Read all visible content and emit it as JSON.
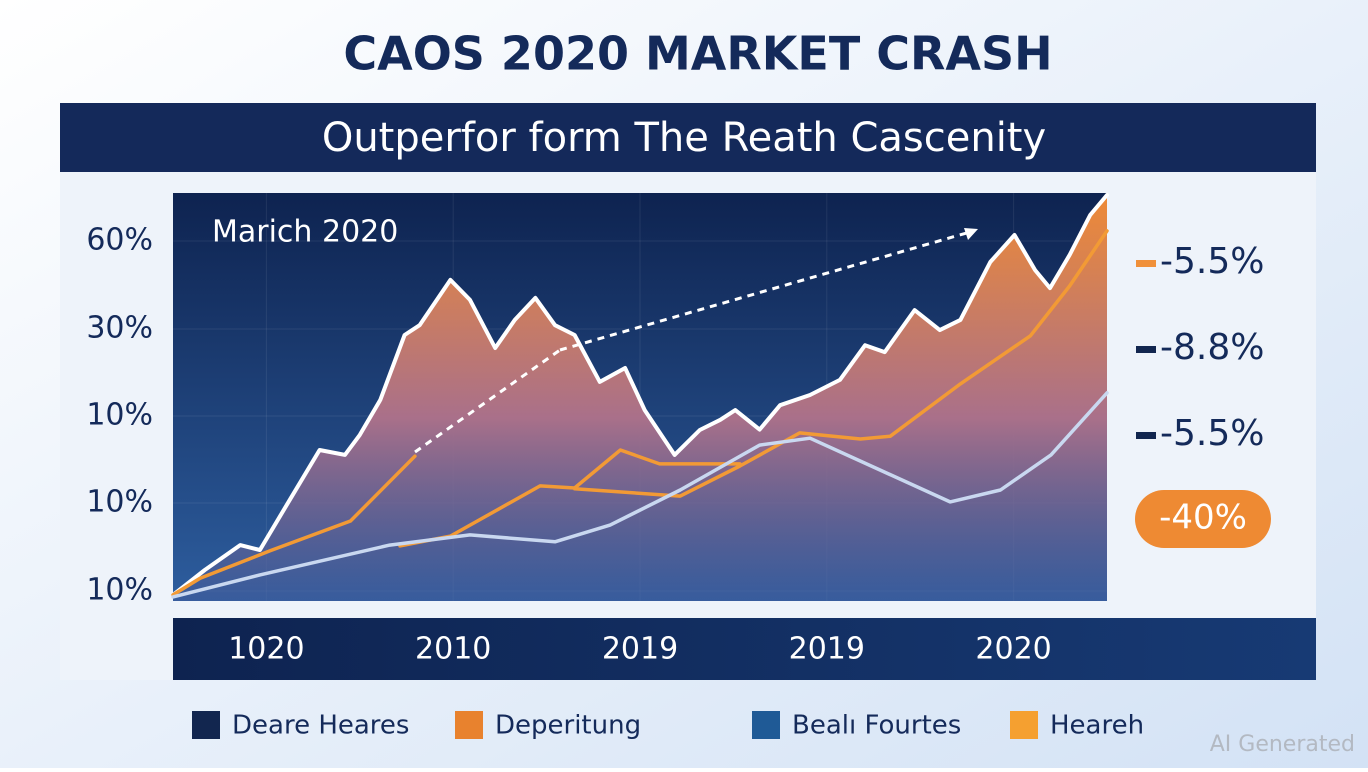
{
  "chart_data": {
    "type": "area",
    "title": "CAOS 2020 MARKET CRASH",
    "subtitle": "Outperfor form The Reath Cascenity",
    "annotation": "Marich 2020",
    "categories": [
      "1020",
      "2010",
      "2019",
      "2019",
      "2020"
    ],
    "y_labels": [
      "60%",
      "30%",
      "10%",
      "10%",
      "10%"
    ],
    "xlim": [
      0,
      100
    ],
    "ylim": [
      0,
      100
    ],
    "grid": true,
    "series": [
      {
        "color": "#ffffff",
        "x": [
          0,
          3.4,
          7.2,
          9.3,
          12.5,
          15.7,
          18.4,
          20.0,
          22.2,
          24.8,
          26.4,
          29.7,
          31.8,
          34.5,
          36.6,
          38.8,
          40.9,
          43.0,
          45.7,
          48.4,
          50.5,
          53.7,
          56.4,
          58.6,
          60.2,
          62.8,
          65.0,
          68.2,
          71.4,
          74.1,
          76.2,
          79.4,
          82.1,
          84.3,
          87.5,
          90.1,
          92.3,
          93.9,
          96.0,
          98.2,
          100
        ],
        "values": [
          1.5,
          7.6,
          13.7,
          12.5,
          24.8,
          37.0,
          35.8,
          40.7,
          49.3,
          65.2,
          67.6,
          78.7,
          73.8,
          62.0,
          68.9,
          74.3,
          67.6,
          65.2,
          53.7,
          57.1,
          46.8,
          35.8,
          41.9,
          44.4,
          46.8,
          42.0,
          48.0,
          50.5,
          54.2,
          62.7,
          61.0,
          71.3,
          66.4,
          68.9,
          83.1,
          89.7,
          81.1,
          76.7,
          84.8,
          94.6,
          99.5
        ]
      },
      {
        "color": "#f29a35",
        "x": [
          0,
          2.9,
          10.4,
          19.0,
          25.9,
          null,
          24.3,
          29.7,
          39.3,
          43.0,
          47.9,
          52.1,
          60.7,
          null,
          43.0,
          54.3,
          60.7,
          67.1,
          73.6,
          76.8,
          84.3,
          91.8,
          96.0,
          100
        ],
        "values": [
          1.5,
          5.6,
          12.3,
          19.6,
          35.5,
          null,
          13.5,
          15.9,
          28.2,
          27.7,
          37.0,
          33.6,
          33.6,
          null,
          27.5,
          25.7,
          33.1,
          41.2,
          39.7,
          40.4,
          53.2,
          65.0,
          77.2,
          90.7
        ]
      },
      {
        "color": "#c9d8f0",
        "x": [
          0,
          9.3,
          23.2,
          31.8,
          40.9,
          46.8,
          54.3,
          62.8,
          68.2,
          75.7,
          83.2,
          88.6,
          94.0,
          100
        ],
        "values": [
          1.0,
          6.4,
          13.7,
          16.2,
          14.5,
          18.6,
          27.2,
          38.2,
          39.9,
          32.1,
          24.3,
          27.2,
          35.8,
          51.0
        ]
      }
    ],
    "side_labels": [
      {
        "text": "-5.5%",
        "color": "#f0903a"
      },
      {
        "text": "-8.8%",
        "color": "#12264f"
      },
      {
        "text": "-5.5%",
        "color": "#12264f"
      },
      {
        "text": "-40%",
        "color": "#ee8a33"
      }
    ],
    "legend": [
      {
        "name": "Deare Heares",
        "color": "#12264f"
      },
      {
        "name": "Deperitung",
        "color": "#e8822e"
      },
      {
        "name": "Bealı Fourtes",
        "color": "#1f5a96"
      },
      {
        "name": "Heareh",
        "color": "#f5a030"
      }
    ],
    "watermark": "AI Generated"
  }
}
